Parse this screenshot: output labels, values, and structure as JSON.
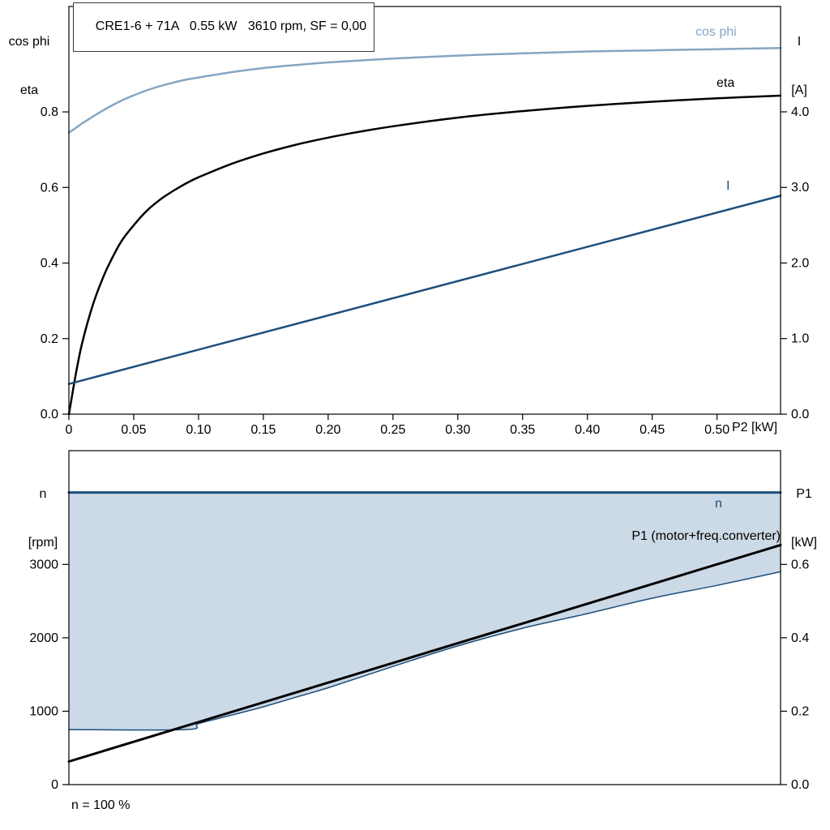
{
  "page": {
    "background": "#ffffff"
  },
  "colors": {
    "dark_blue": "#1d4f7c",
    "light_blue": "#87a5c3",
    "area_fill": "#ccd9e6",
    "black": "#000000"
  },
  "chart_data": {
    "note": "see charts array"
  },
  "charts": [
    {
      "name": "motor-efficiency-chart",
      "type": "line",
      "title": "CRE1-6 + 71A   0.55 kW   3610 rpm, SF = 0,00",
      "x_axis": {
        "label": "P2 [kW]",
        "min": 0,
        "max": 0.549,
        "tick_values": [
          0,
          0.05,
          0.1,
          0.15,
          0.2,
          0.25,
          0.3,
          0.35,
          0.4,
          0.45,
          0.5
        ],
        "tick_labels": [
          "0",
          "0.05",
          "0.10",
          "0.15",
          "0.20",
          "0.25",
          "0.30",
          "0.35",
          "0.40",
          "0.45",
          "0.50"
        ]
      },
      "y_left": {
        "line1": "cos phi",
        "line2": "eta",
        "min": 0,
        "max": 1.079,
        "tick_values": [
          0,
          0.2,
          0.4,
          0.6,
          0.8
        ],
        "tick_labels": [
          "0.0",
          "0.2",
          "0.4",
          "0.6",
          "0.8"
        ]
      },
      "y_right": {
        "line1": "I",
        "line2": "[A]",
        "min": 0,
        "max": 5.394,
        "tick_values": [
          0,
          1,
          2,
          3,
          4
        ],
        "tick_labels": [
          "0.0",
          "1.0",
          "2.0",
          "3.0",
          "4.0"
        ]
      },
      "series": [
        {
          "name": "cos-phi",
          "label": "cos phi",
          "axis": "left",
          "color": "#87a5c3",
          "width": 2.5,
          "smooth": true,
          "points": [
            [
              0,
              0.745
            ],
            [
              0.005,
              0.757
            ],
            [
              0.01,
              0.769
            ],
            [
              0.015,
              0.78
            ],
            [
              0.02,
              0.791
            ],
            [
              0.03,
              0.811
            ],
            [
              0.04,
              0.829
            ],
            [
              0.05,
              0.844
            ],
            [
              0.06,
              0.857
            ],
            [
              0.07,
              0.868
            ],
            [
              0.08,
              0.877
            ],
            [
              0.09,
              0.885
            ],
            [
              0.1,
              0.891
            ],
            [
              0.125,
              0.905
            ],
            [
              0.15,
              0.916
            ],
            [
              0.175,
              0.924
            ],
            [
              0.2,
              0.931
            ],
            [
              0.25,
              0.941
            ],
            [
              0.3,
              0.949
            ],
            [
              0.35,
              0.955
            ],
            [
              0.4,
              0.96
            ],
            [
              0.45,
              0.963
            ],
            [
              0.5,
              0.966
            ],
            [
              0.549,
              0.969
            ]
          ]
        },
        {
          "name": "eta",
          "label": "eta",
          "axis": "left",
          "color": "#000000",
          "width": 2.5,
          "smooth": true,
          "points": [
            [
              0,
              0
            ],
            [
              0.0025,
              0.05
            ],
            [
              0.005,
              0.1
            ],
            [
              0.0075,
              0.145
            ],
            [
              0.01,
              0.185
            ],
            [
              0.015,
              0.25
            ],
            [
              0.02,
              0.305
            ],
            [
              0.025,
              0.35
            ],
            [
              0.03,
              0.39
            ],
            [
              0.04,
              0.455
            ],
            [
              0.05,
              0.5
            ],
            [
              0.06,
              0.538
            ],
            [
              0.07,
              0.567
            ],
            [
              0.08,
              0.59
            ],
            [
              0.09,
              0.61
            ],
            [
              0.1,
              0.627
            ],
            [
              0.125,
              0.662
            ],
            [
              0.15,
              0.69
            ],
            [
              0.175,
              0.713
            ],
            [
              0.2,
              0.732
            ],
            [
              0.225,
              0.748
            ],
            [
              0.25,
              0.762
            ],
            [
              0.3,
              0.785
            ],
            [
              0.35,
              0.802
            ],
            [
              0.4,
              0.816
            ],
            [
              0.45,
              0.827
            ],
            [
              0.5,
              0.836
            ],
            [
              0.549,
              0.843
            ]
          ]
        },
        {
          "name": "current",
          "label": "I",
          "axis": "right",
          "color": "#1d4f7c",
          "width": 2.5,
          "smooth": false,
          "points": [
            [
              0,
              0.4
            ],
            [
              0.549,
              2.89
            ]
          ]
        }
      ]
    },
    {
      "name": "speed-power-chart",
      "type": "line",
      "footnote": "n = 100 %",
      "x_axis": {
        "label": "",
        "min": 0,
        "max": 0.549,
        "tick_values": [],
        "tick_labels": []
      },
      "y_left": {
        "line1": "n",
        "line2": "[rpm]",
        "min": 0,
        "max": 4550,
        "tick_values": [
          0,
          1000,
          2000,
          3000
        ],
        "tick_labels": [
          "0",
          "1000",
          "2000",
          "3000"
        ]
      },
      "y_right": {
        "line1": "P1",
        "line2": "[kW]",
        "min": 0,
        "max": 0.91,
        "tick_values": [
          0,
          0.2,
          0.4,
          0.6
        ],
        "tick_labels": [
          "0.0",
          "0.2",
          "0.4",
          "0.6"
        ]
      },
      "area": {
        "name": "speed-control-range-area",
        "fill": "#ccd9e6",
        "upper_value": 3980,
        "lower_points": [
          [
            0,
            750
          ],
          [
            0.09,
            750
          ],
          [
            0.1,
            830
          ],
          [
            0.125,
            945
          ],
          [
            0.15,
            1060
          ],
          [
            0.175,
            1190
          ],
          [
            0.2,
            1320
          ],
          [
            0.25,
            1610
          ],
          [
            0.3,
            1890
          ],
          [
            0.35,
            2130
          ],
          [
            0.4,
            2330
          ],
          [
            0.45,
            2540
          ],
          [
            0.5,
            2715
          ],
          [
            0.549,
            2900
          ]
        ]
      },
      "series": [
        {
          "name": "min-speed-boundary",
          "label": "",
          "axis": "left",
          "color": "#1d4f7c",
          "width": 1.5,
          "smooth": true,
          "points": [
            [
              0,
              750
            ],
            [
              0.09,
              750
            ],
            [
              0.1,
              830
            ],
            [
              0.125,
              945
            ],
            [
              0.15,
              1060
            ],
            [
              0.175,
              1190
            ],
            [
              0.2,
              1320
            ],
            [
              0.25,
              1610
            ],
            [
              0.3,
              1890
            ],
            [
              0.35,
              2130
            ],
            [
              0.4,
              2330
            ],
            [
              0.45,
              2540
            ],
            [
              0.5,
              2715
            ],
            [
              0.549,
              2900
            ]
          ]
        },
        {
          "name": "speed",
          "label": "n",
          "axis": "left",
          "color": "#1d4f7c",
          "width": 3,
          "smooth": false,
          "points": [
            [
              0,
              3980
            ],
            [
              0.549,
              3980
            ]
          ]
        },
        {
          "name": "p1-input-power",
          "label": "P1 (motor+freq.converter)",
          "axis": "right",
          "color": "#000000",
          "width": 3,
          "smooth": false,
          "points": [
            [
              0,
              0.063
            ],
            [
              0.549,
              0.653
            ]
          ]
        }
      ]
    }
  ]
}
